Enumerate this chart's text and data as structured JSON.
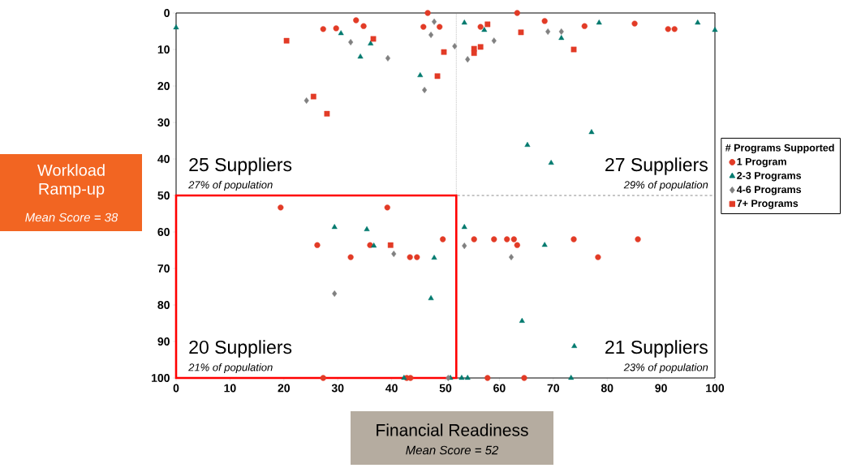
{
  "chart_data": {
    "type": "scatter",
    "xlabel": "Financial Readiness",
    "ylabel": "Workload Ramp-up",
    "legend_title": "# Programs Supported",
    "legend": "right",
    "xlim": [
      0,
      100
    ],
    "ylim": [
      100,
      0
    ],
    "xticks": [
      0,
      10,
      20,
      30,
      40,
      50,
      60,
      70,
      80,
      90,
      100
    ],
    "yticks": [
      0,
      10,
      20,
      30,
      40,
      50,
      60,
      70,
      80,
      90,
      100
    ],
    "series": [
      {
        "name": "1 Program",
        "color": "#e23b26",
        "marker": "circle",
        "x": [
          27.3,
          29.7,
          33.4,
          34.8,
          46.7,
          45.9,
          48.9,
          56.5,
          63.3,
          68.4,
          75.8,
          85.1,
          91.3,
          92.5,
          19.4,
          39.2,
          26.2,
          36,
          32.4,
          43.4,
          44.7,
          49.5,
          27.3,
          42.8,
          43.5,
          55.3,
          59,
          61.4,
          62.7,
          63.3,
          73.8,
          85.7,
          78.3,
          57.8,
          64.6
        ],
        "values": [
          4.4,
          4.2,
          2,
          3.6,
          0,
          3.8,
          3.8,
          3.8,
          0,
          2.2,
          3.6,
          2.9,
          4.4,
          4.4,
          53.3,
          53.3,
          63.6,
          63.6,
          66.9,
          66.9,
          66.9,
          62,
          100,
          100,
          100,
          62,
          62,
          62,
          62,
          63.6,
          62,
          62,
          66.9,
          100,
          100
        ]
      },
      {
        "name": "2-3 Programs",
        "color": "#007a6e",
        "marker": "triangle",
        "x": [
          0,
          30.6,
          36.1,
          34.2,
          45.3,
          53.5,
          57.2,
          71.5,
          78.5,
          96.8,
          100,
          77.1,
          65.2,
          69.6,
          29.4,
          35.4,
          36.7,
          47.9,
          47.3,
          42.3,
          50.9,
          53,
          54.1,
          53.5,
          68.4,
          64.2,
          73.3,
          73.9
        ],
        "values": [
          4,
          5.6,
          8.4,
          12,
          17.1,
          2.7,
          4.7,
          6.9,
          2.7,
          2.7,
          4.7,
          32.7,
          36.2,
          41.1,
          58.7,
          59.3,
          63.8,
          67.1,
          78.2,
          100,
          100,
          100,
          100,
          58.7,
          63.6,
          84.4,
          100,
          91.3
        ]
      },
      {
        "name": "4-6 Programs",
        "color": "#808080",
        "marker": "diamond",
        "x": [
          24.2,
          32.4,
          39.3,
          47.9,
          47.3,
          51.7,
          46.1,
          54.1,
          59,
          69,
          71.5,
          29.4,
          40.4,
          50.5,
          53.5,
          62.2
        ],
        "values": [
          24,
          8,
          12.4,
          2.4,
          6,
          9.1,
          21.1,
          12.7,
          7.6,
          5.1,
          5.1,
          76.9,
          66,
          100,
          63.8,
          66.9
        ]
      },
      {
        "name": "7+ Programs",
        "color": "#e23b26",
        "marker": "square",
        "x": [
          20.5,
          36.6,
          49.7,
          48.5,
          25.5,
          28,
          57.8,
          56.5,
          55.3,
          55.3,
          64,
          73.8,
          39.8
        ],
        "values": [
          7.6,
          7.1,
          10.7,
          17.3,
          22.9,
          27.6,
          3.1,
          9.3,
          9.8,
          11,
          5.3,
          10,
          63.6
        ]
      }
    ],
    "ref_lines": [
      {
        "axis": "x",
        "value": 52,
        "color": "#a6a6a6",
        "line_style": "dotted"
      },
      {
        "axis": "y",
        "value": 50,
        "color": "#707070",
        "line_style": "dashed"
      }
    ],
    "annotations": [
      "25 Suppliers",
      "27% of population",
      "27 Suppliers",
      "29% of population",
      "20 Suppliers",
      "21% of population",
      "21 Suppliers",
      "23% of population",
      "Mean Score = 38",
      "Mean Score = 52"
    ]
  }
}
